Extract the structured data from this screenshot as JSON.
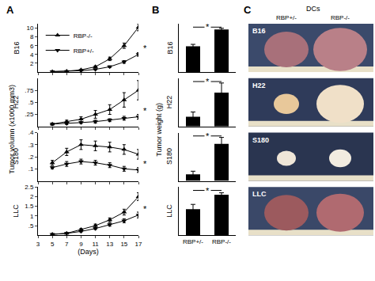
{
  "figure": {
    "panel_labels": [
      "A",
      "B",
      "C"
    ],
    "a_ylabel": "Tumor volumn (x1000 mm3)",
    "b_ylabel": "Tumor weight (g)"
  },
  "photo_panel": {
    "header": "DCs",
    "columns": [
      "RBP+/-",
      "RBP-/-"
    ],
    "rows": [
      "B16",
      "H22",
      "S180",
      "LLC"
    ]
  },
  "chart_data": [
    {
      "type": "line",
      "ylabel": "B16",
      "x": [
        5,
        7,
        9,
        11,
        13,
        15,
        17
      ],
      "xlim": [
        3,
        17
      ],
      "xticks": [
        3,
        5,
        7,
        9,
        11,
        13,
        15,
        17
      ],
      "ylim": [
        0,
        11
      ],
      "yticks": [
        2,
        4,
        6,
        8,
        10
      ],
      "grid": false,
      "tick_labels": "y",
      "legend": "upper left",
      "annotations": [
        {
          "text": "*",
          "x": 17
        }
      ],
      "series": [
        {
          "name": "RBP-/-",
          "color": "#000000",
          "marker": "triangle-up",
          "line_style": "solid",
          "values": [
            0.1,
            0.2,
            0.5,
            1.2,
            3.0,
            6.0,
            10.2
          ],
          "errors": [
            0.05,
            0.05,
            0.1,
            0.2,
            0.4,
            0.6,
            0.8
          ]
        },
        {
          "name": "RBP+/-",
          "color": "#000000",
          "marker": "triangle-down",
          "line_style": "solid",
          "values": [
            0.1,
            0.15,
            0.3,
            0.6,
            1.2,
            2.3,
            4.0
          ],
          "errors": [
            0.05,
            0.05,
            0.05,
            0.1,
            0.2,
            0.3,
            0.4
          ]
        }
      ]
    },
    {
      "type": "line",
      "ylabel": "H22",
      "x": [
        5,
        7,
        9,
        11,
        13,
        15,
        17
      ],
      "xlim": [
        3,
        17
      ],
      "xticks": [
        3,
        5,
        7,
        9,
        11,
        13,
        15,
        17
      ],
      "ylim": [
        0,
        1
      ],
      "yticks": [
        {
          "value": 0.25,
          "label": ".25"
        },
        {
          "value": 0.5,
          "label": ".5"
        },
        {
          "value": 0.75,
          "label": ".75"
        }
      ],
      "grid": false,
      "tick_labels": "y",
      "annotations": [
        {
          "text": "*",
          "x": 17
        }
      ],
      "series": [
        {
          "name": "RBP-/-",
          "color": "#000000",
          "marker": "triangle-up",
          "line_style": "solid",
          "values": [
            0.05,
            0.1,
            0.15,
            0.25,
            0.35,
            0.55,
            0.75
          ],
          "errors": [
            0.02,
            0.03,
            0.05,
            0.08,
            0.1,
            0.15,
            0.2
          ]
        },
        {
          "name": "RBP+/-",
          "color": "#000000",
          "marker": "triangle-down",
          "line_style": "solid",
          "values": [
            0.05,
            0.06,
            0.08,
            0.1,
            0.13,
            0.17,
            0.2
          ],
          "errors": [
            0.02,
            0.02,
            0.02,
            0.03,
            0.03,
            0.04,
            0.05
          ]
        }
      ]
    },
    {
      "type": "line",
      "ylabel": "S180",
      "x": [
        5,
        7,
        9,
        11,
        13,
        15,
        17
      ],
      "xlim": [
        3,
        17
      ],
      "xticks": [
        3,
        5,
        7,
        9,
        11,
        13,
        15,
        17
      ],
      "ylim": [
        0,
        0.4
      ],
      "yticks": [
        {
          "value": 0.1,
          "label": ".1"
        },
        {
          "value": 0.2,
          "label": ".2"
        },
        {
          "value": 0.3,
          "label": ".3"
        },
        {
          "value": 0.4,
          "label": ".4"
        }
      ],
      "grid": false,
      "tick_labels": "y",
      "annotations": [
        {
          "text": "*",
          "x": 17
        }
      ],
      "series": [
        {
          "name": "RBP-/-",
          "color": "#000000",
          "marker": "triangle-up",
          "line_style": "solid",
          "values": [
            0.15,
            0.24,
            0.3,
            0.29,
            0.28,
            0.26,
            0.22
          ],
          "errors": [
            0.02,
            0.03,
            0.04,
            0.04,
            0.04,
            0.04,
            0.04
          ]
        },
        {
          "name": "RBP+/-",
          "color": "#000000",
          "marker": "triangle-down",
          "line_style": "solid",
          "values": [
            0.11,
            0.14,
            0.16,
            0.15,
            0.13,
            0.1,
            0.09
          ],
          "errors": [
            0.01,
            0.02,
            0.02,
            0.02,
            0.02,
            0.02,
            0.02
          ]
        }
      ]
    },
    {
      "type": "line",
      "ylabel": "LLC",
      "xlabel": "(Days)",
      "x": [
        5,
        7,
        9,
        11,
        13,
        15,
        17
      ],
      "xlim": [
        3,
        17
      ],
      "xticks": [
        3,
        5,
        7,
        9,
        11,
        13,
        15,
        17
      ],
      "ylim": [
        0,
        2.5
      ],
      "yticks": [
        {
          "value": 0.5,
          "label": ".5"
        },
        1,
        1.5,
        2,
        2.5
      ],
      "grid": false,
      "annotations": [
        {
          "text": "*",
          "x": 17
        }
      ],
      "series": [
        {
          "name": "RBP-/-",
          "color": "#000000",
          "marker": "triangle-up",
          "line_style": "solid",
          "values": [
            0.05,
            0.1,
            0.3,
            0.5,
            0.8,
            1.2,
            2.0
          ],
          "errors": [
            0.02,
            0.03,
            0.05,
            0.08,
            0.1,
            0.15,
            0.2
          ]
        },
        {
          "name": "RBP+/-",
          "color": "#000000",
          "marker": "triangle-down",
          "line_style": "solid",
          "values": [
            0.05,
            0.1,
            0.2,
            0.35,
            0.55,
            0.75,
            1.05
          ],
          "errors": [
            0.02,
            0.02,
            0.03,
            0.05,
            0.08,
            0.1,
            0.15
          ]
        }
      ]
    },
    {
      "type": "bar",
      "ylabel": "B16",
      "categories": [
        "RBP+/-",
        "RBP-/-"
      ],
      "values": [
        4.0,
        6.6
      ],
      "errors": [
        0.3,
        0.2
      ],
      "color": "#000000",
      "ylim": [
        0,
        7.5
      ],
      "tick_labels": false,
      "grid": false,
      "annotations": [
        {
          "text": "*"
        }
      ]
    },
    {
      "type": "bar",
      "ylabel": "H22",
      "categories": [
        "RBP+/-",
        "RBP-/-"
      ],
      "values": [
        0.1,
        0.35
      ],
      "errors": [
        0.05,
        0.1
      ],
      "color": "#000000",
      "ylim": [
        0,
        0.5
      ],
      "tick_labels": false,
      "grid": false,
      "annotations": [
        {
          "text": "*"
        }
      ]
    },
    {
      "type": "bar",
      "ylabel": "S180",
      "categories": [
        "RBP+/-",
        "RBP-/-"
      ],
      "values": [
        0.02,
        0.115
      ],
      "errors": [
        0.01,
        0.02
      ],
      "color": "#000000",
      "ylim": [
        0,
        0.15
      ],
      "tick_labels": false,
      "grid": false,
      "annotations": [
        {
          "text": "*"
        }
      ]
    },
    {
      "type": "bar",
      "ylabel": "LLC",
      "categories": [
        "RBP+/-",
        "RBP-/-"
      ],
      "values": [
        1.35,
        2.1
      ],
      "errors": [
        0.25,
        0.1
      ],
      "color": "#000000",
      "ylim": [
        0,
        2.5
      ],
      "tick_labels": "x",
      "grid": false,
      "annotations": [
        {
          "text": "*"
        }
      ]
    }
  ]
}
